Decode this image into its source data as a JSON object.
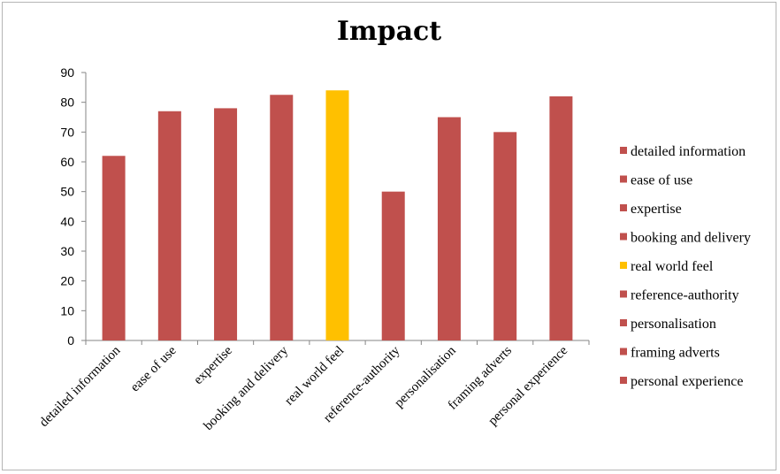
{
  "chart_data": {
    "type": "bar",
    "title": "Impact",
    "categories": [
      "detailed information",
      "ease of use",
      "expertise",
      "booking and delivery",
      "real world feel",
      "reference-authority",
      "personalisation",
      "framing adverts",
      "personal experience"
    ],
    "values": [
      62,
      77,
      78,
      82.5,
      84,
      50,
      75,
      70,
      82
    ],
    "colors": [
      "#c0504d",
      "#c0504d",
      "#c0504d",
      "#c0504d",
      "#ffc000",
      "#c0504d",
      "#c0504d",
      "#c0504d",
      "#c0504d"
    ],
    "ylim": [
      0,
      90
    ],
    "yticks": [
      0,
      10,
      20,
      30,
      40,
      50,
      60,
      70,
      80,
      90
    ],
    "xlabel": "",
    "ylabel": "",
    "grid": false,
    "legend": {
      "placement": "right",
      "entries": [
        "detailed information",
        "ease of use",
        "expertise",
        "booking and delivery",
        "real world feel",
        "reference-authority",
        "personalisation",
        "framing adverts",
        "personal experience"
      ]
    }
  }
}
